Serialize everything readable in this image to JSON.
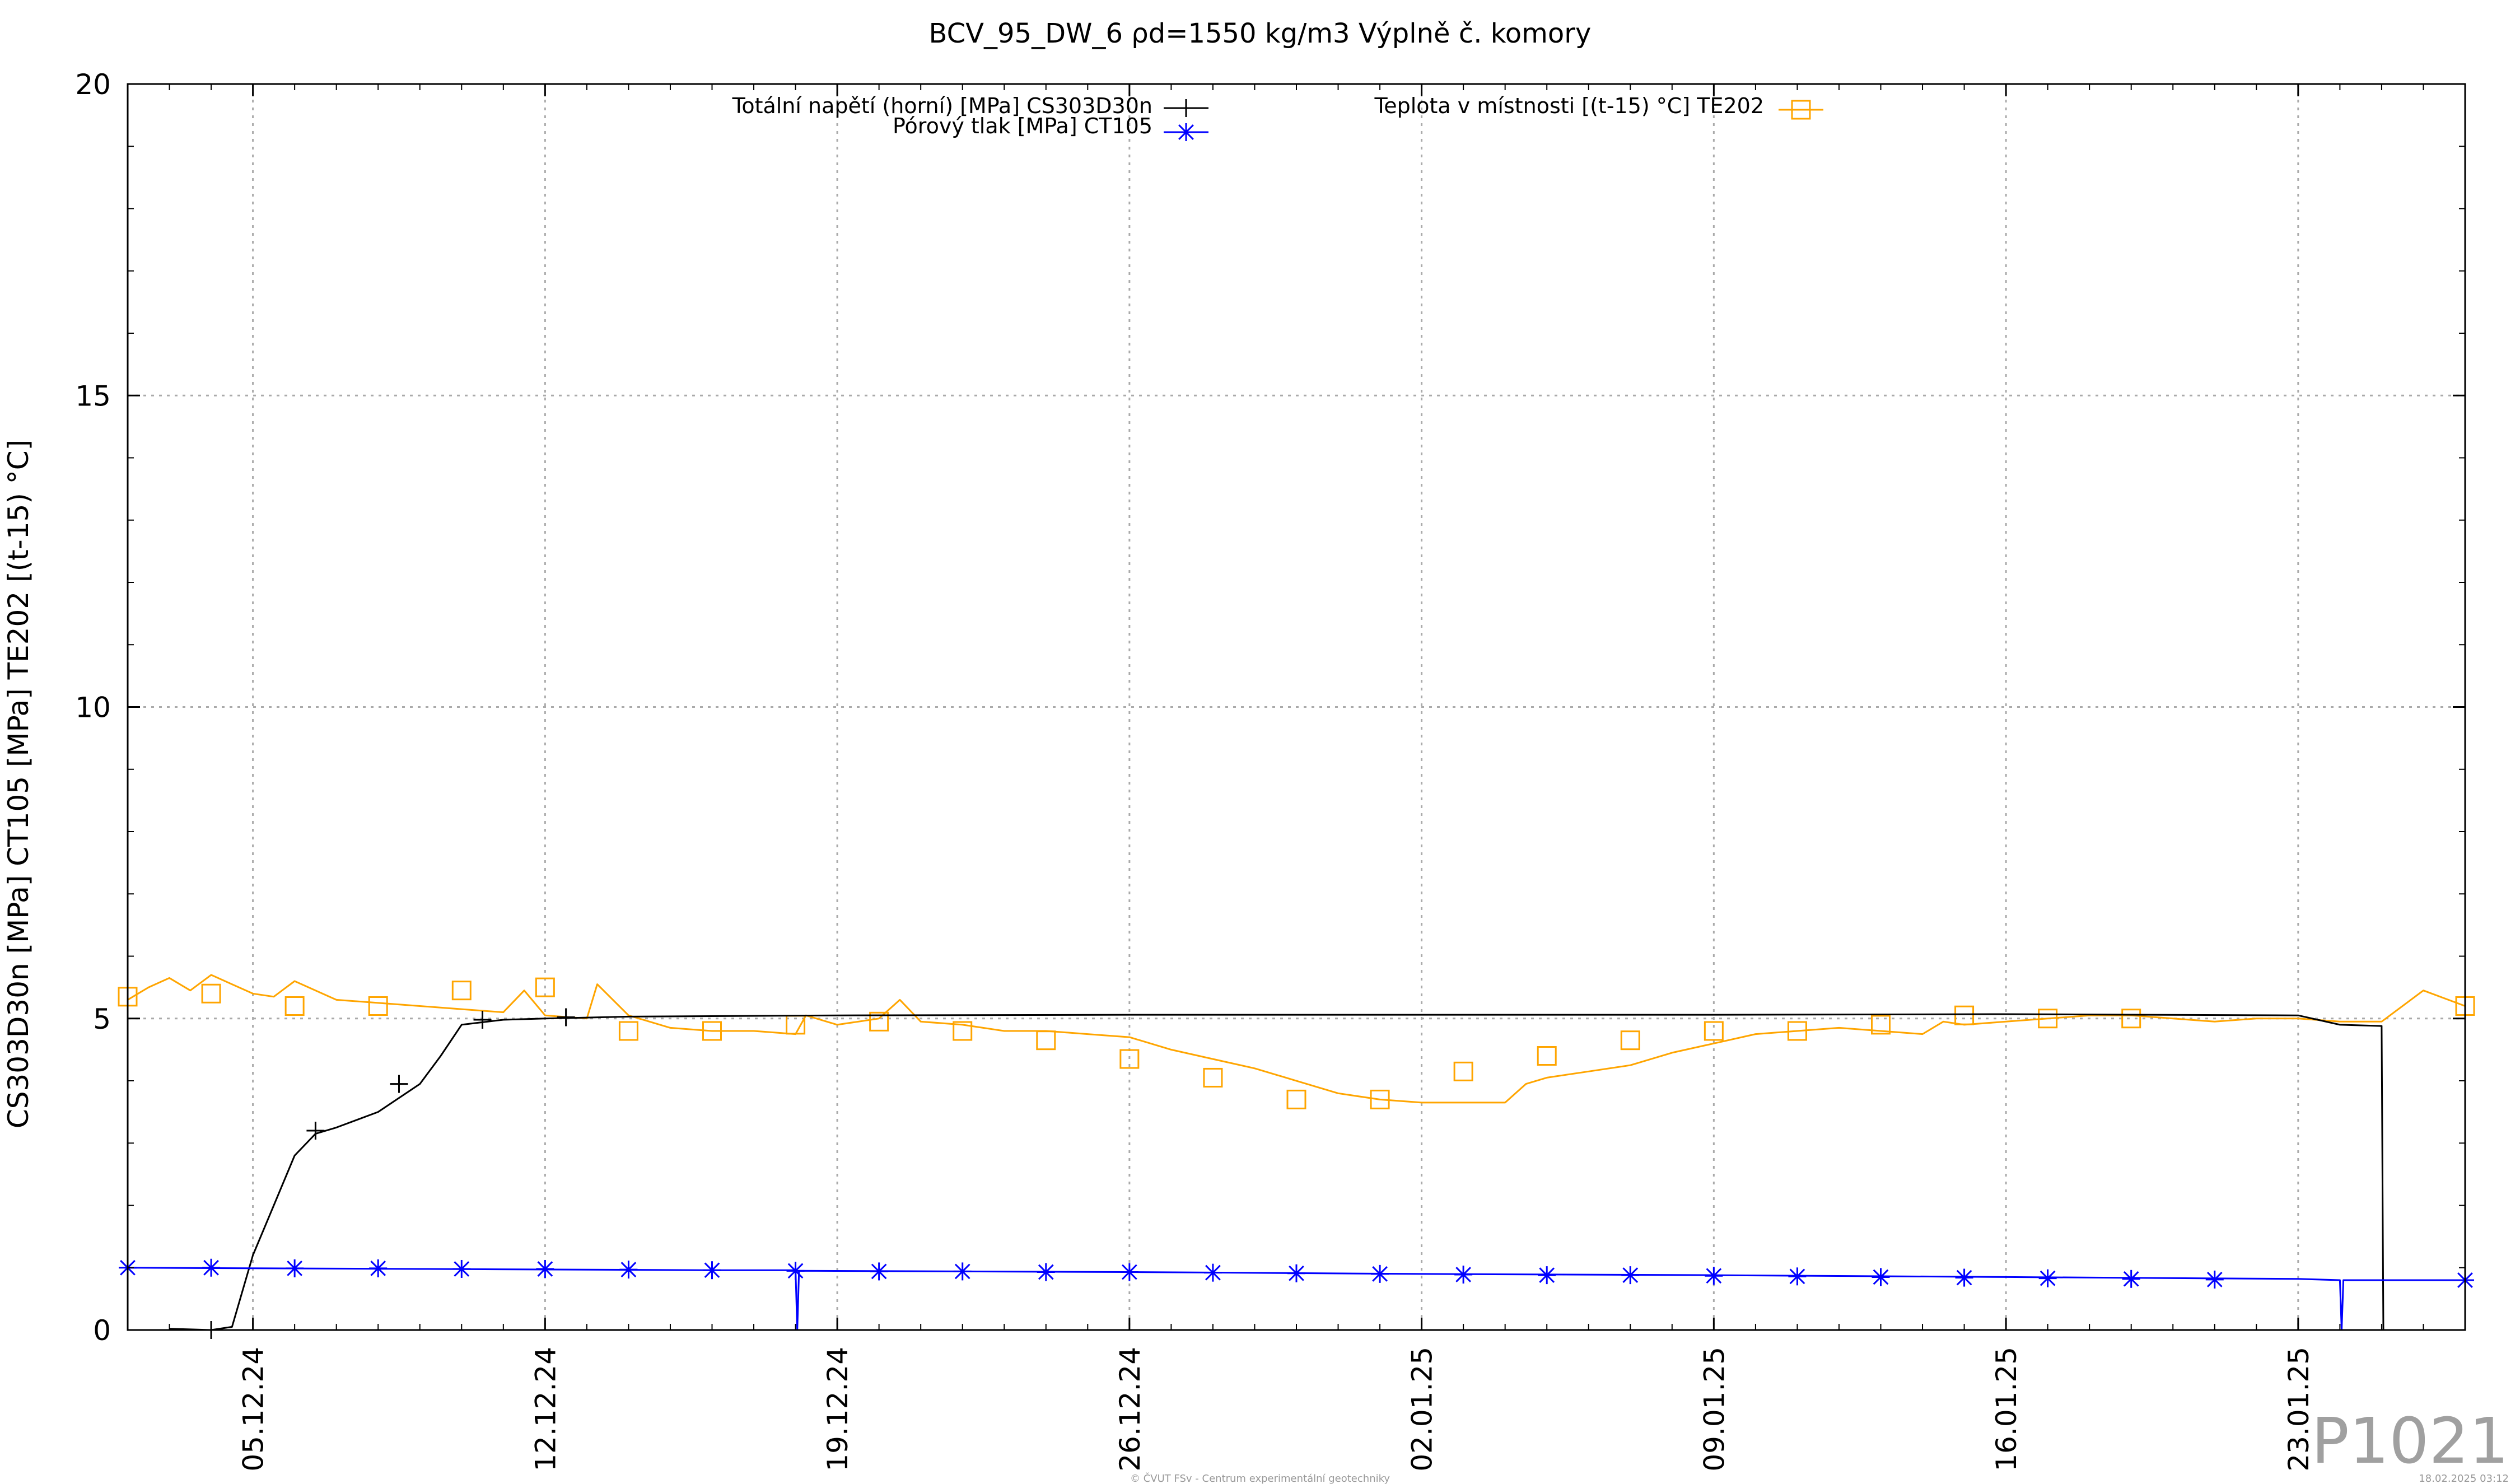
{
  "chart_data": {
    "type": "line",
    "title": "BCV_95_DW_6 ρd=1550 kg/m3 Výplně č. komory",
    "ylabel": "CS303D30n [MPa] CT105 [MPa] TE202 [(t-15) °C]",
    "xlabel": "",
    "ylim": [
      0,
      20
    ],
    "yticks": [
      "0",
      "5",
      "10",
      "15",
      "20"
    ],
    "xlim": [
      "2024-12-02",
      "2025-01-27"
    ],
    "xticks": [
      {
        "date": "2024-12-05",
        "label": "05.12.24"
      },
      {
        "date": "2024-12-12",
        "label": "12.12.24"
      },
      {
        "date": "2024-12-19",
        "label": "19.12.24"
      },
      {
        "date": "2024-12-26",
        "label": "26.12.24"
      },
      {
        "date": "2025-01-02",
        "label": "02.01.25"
      },
      {
        "date": "2025-01-09",
        "label": "09.01.25"
      },
      {
        "date": "2025-01-16",
        "label": "16.01.25"
      },
      {
        "date": "2025-01-23",
        "label": "23.01.25"
      }
    ],
    "grid": true,
    "legend_position": "top",
    "series": [
      {
        "name": "Totální napětí (horní) [MPa] CS303D30n",
        "color": "#000000",
        "marker": "plus",
        "points": [
          [
            "2024-12-03",
            0.02
          ],
          [
            "2024-12-04",
            0.0
          ],
          [
            "2024-12-04T12:00",
            0.05
          ],
          [
            "2024-12-05",
            1.2
          ],
          [
            "2024-12-05T12:00",
            2.0
          ],
          [
            "2024-12-06",
            2.8
          ],
          [
            "2024-12-06T12:00",
            3.15
          ],
          [
            "2024-12-07",
            3.25
          ],
          [
            "2024-12-08",
            3.5
          ],
          [
            "2024-12-09",
            3.95
          ],
          [
            "2024-12-09T12:00",
            4.4
          ],
          [
            "2024-12-10",
            4.9
          ],
          [
            "2024-12-11",
            4.98
          ],
          [
            "2024-12-12",
            5.0
          ],
          [
            "2024-12-14",
            5.03
          ],
          [
            "2024-12-19",
            5.05
          ],
          [
            "2024-12-26",
            5.06
          ],
          [
            "2025-01-02",
            5.06
          ],
          [
            "2025-01-09",
            5.06
          ],
          [
            "2025-01-16",
            5.07
          ],
          [
            "2025-01-23",
            5.05
          ],
          [
            "2025-01-24",
            4.9
          ],
          [
            "2025-01-25",
            4.88
          ],
          [
            "2025-01-25T01:00",
            0.0
          ]
        ],
        "marker_points": [
          [
            "2024-12-04",
            0.0
          ],
          [
            "2024-12-06T12:00",
            3.2
          ],
          [
            "2024-12-08T12:00",
            3.95
          ],
          [
            "2024-12-10T12:00",
            4.98
          ],
          [
            "2024-12-12T12:00",
            5.02
          ]
        ]
      },
      {
        "name": "Pórový tlak [MPa] CT105",
        "color": "#0000ff",
        "marker": "star",
        "points": [
          [
            "2024-12-02",
            1.0
          ],
          [
            "2024-12-09",
            0.98
          ],
          [
            "2024-12-16",
            0.96
          ],
          [
            "2024-12-18",
            0.96
          ],
          [
            "2024-12-18T01:00",
            0.0
          ],
          [
            "2024-12-18T02:00",
            0.95
          ],
          [
            "2024-12-26",
            0.93
          ],
          [
            "2025-01-02",
            0.9
          ],
          [
            "2025-01-09",
            0.88
          ],
          [
            "2025-01-16",
            0.85
          ],
          [
            "2025-01-23",
            0.82
          ],
          [
            "2025-01-24",
            0.8
          ],
          [
            "2025-01-24T01:00",
            0.0
          ],
          [
            "2025-01-24T02:00",
            0.8
          ],
          [
            "2025-01-27",
            0.8
          ]
        ],
        "marker_points": [
          [
            "2024-12-02",
            1.0
          ],
          [
            "2024-12-04",
            1.0
          ],
          [
            "2024-12-06",
            0.99
          ],
          [
            "2024-12-08",
            0.99
          ],
          [
            "2024-12-10",
            0.98
          ],
          [
            "2024-12-12",
            0.98
          ],
          [
            "2024-12-14",
            0.97
          ],
          [
            "2024-12-16",
            0.96
          ],
          [
            "2024-12-18",
            0.95
          ],
          [
            "2024-12-20",
            0.94
          ],
          [
            "2024-12-22",
            0.94
          ],
          [
            "2024-12-24",
            0.93
          ],
          [
            "2024-12-26",
            0.93
          ],
          [
            "2024-12-28",
            0.92
          ],
          [
            "2024-12-30",
            0.91
          ],
          [
            "2025-01-01",
            0.9
          ],
          [
            "2025-01-03",
            0.89
          ],
          [
            "2025-01-05",
            0.88
          ],
          [
            "2025-01-07",
            0.88
          ],
          [
            "2025-01-09",
            0.87
          ],
          [
            "2025-01-11",
            0.86
          ],
          [
            "2025-01-13",
            0.85
          ],
          [
            "2025-01-15",
            0.84
          ],
          [
            "2025-01-17",
            0.83
          ],
          [
            "2025-01-19",
            0.82
          ],
          [
            "2025-01-21",
            0.81
          ],
          [
            "2025-01-27",
            0.8
          ]
        ]
      },
      {
        "name": "Teplota v místnosti [(t-15) °C] TE202",
        "color": "#ffa500",
        "marker": "square",
        "points": [
          [
            "2024-12-02",
            5.3
          ],
          [
            "2024-12-02T12:00",
            5.5
          ],
          [
            "2024-12-03",
            5.65
          ],
          [
            "2024-12-03T12:00",
            5.45
          ],
          [
            "2024-12-04",
            5.7
          ],
          [
            "2024-12-04T12:00",
            5.55
          ],
          [
            "2024-12-05",
            5.4
          ],
          [
            "2024-12-05T12:00",
            5.35
          ],
          [
            "2024-12-06",
            5.6
          ],
          [
            "2024-12-07",
            5.3
          ],
          [
            "2024-12-08",
            5.25
          ],
          [
            "2024-12-09",
            5.2
          ],
          [
            "2024-12-10",
            5.15
          ],
          [
            "2024-12-11",
            5.1
          ],
          [
            "2024-12-11T12:00",
            5.45
          ],
          [
            "2024-12-12",
            5.05
          ],
          [
            "2024-12-13",
            5.0
          ],
          [
            "2024-12-13T06:00",
            5.55
          ],
          [
            "2024-12-14",
            5.05
          ],
          [
            "2024-12-15",
            4.85
          ],
          [
            "2024-12-16",
            4.8
          ],
          [
            "2024-12-17",
            4.8
          ],
          [
            "2024-12-18",
            4.75
          ],
          [
            "2024-12-18T06:00",
            5.05
          ],
          [
            "2024-12-19",
            4.9
          ],
          [
            "2024-12-20",
            5.0
          ],
          [
            "2024-12-20T12:00",
            5.3
          ],
          [
            "2024-12-21",
            4.95
          ],
          [
            "2024-12-22",
            4.9
          ],
          [
            "2024-12-23",
            4.8
          ],
          [
            "2024-12-24",
            4.8
          ],
          [
            "2024-12-25",
            4.75
          ],
          [
            "2024-12-26",
            4.7
          ],
          [
            "2024-12-27",
            4.5
          ],
          [
            "2024-12-28",
            4.35
          ],
          [
            "2024-12-29",
            4.2
          ],
          [
            "2024-12-30",
            4.0
          ],
          [
            "2024-12-31",
            3.8
          ],
          [
            "2025-01-01",
            3.7
          ],
          [
            "2025-01-02",
            3.65
          ],
          [
            "2025-01-03",
            3.65
          ],
          [
            "2025-01-04",
            3.65
          ],
          [
            "2025-01-04T12:00",
            3.95
          ],
          [
            "2025-01-05",
            4.05
          ],
          [
            "2025-01-06",
            4.15
          ],
          [
            "2025-01-07",
            4.25
          ],
          [
            "2025-01-08",
            4.45
          ],
          [
            "2025-01-09",
            4.6
          ],
          [
            "2025-01-10",
            4.75
          ],
          [
            "2025-01-11",
            4.8
          ],
          [
            "2025-01-12",
            4.85
          ],
          [
            "2025-01-13",
            4.8
          ],
          [
            "2025-01-14",
            4.75
          ],
          [
            "2025-01-14T12:00",
            4.95
          ],
          [
            "2025-01-15",
            4.9
          ],
          [
            "2025-01-16",
            4.95
          ],
          [
            "2025-01-17",
            5.0
          ],
          [
            "2025-01-18",
            5.05
          ],
          [
            "2025-01-19",
            5.05
          ],
          [
            "2025-01-20",
            5.0
          ],
          [
            "2025-01-21",
            4.95
          ],
          [
            "2025-01-22",
            5.0
          ],
          [
            "2025-01-23",
            5.0
          ],
          [
            "2025-01-24",
            4.95
          ],
          [
            "2025-01-25",
            4.95
          ],
          [
            "2025-01-26",
            5.45
          ],
          [
            "2025-01-27",
            5.2
          ]
        ],
        "marker_points": [
          [
            "2024-12-02",
            5.35
          ],
          [
            "2024-12-04",
            5.4
          ],
          [
            "2024-12-06",
            5.2
          ],
          [
            "2024-12-08",
            5.2
          ],
          [
            "2024-12-10",
            5.45
          ],
          [
            "2024-12-12",
            5.5
          ],
          [
            "2024-12-14",
            4.8
          ],
          [
            "2024-12-16",
            4.8
          ],
          [
            "2024-12-18",
            4.9
          ],
          [
            "2024-12-20",
            4.95
          ],
          [
            "2024-12-22",
            4.8
          ],
          [
            "2024-12-24",
            4.65
          ],
          [
            "2024-12-26",
            4.35
          ],
          [
            "2024-12-28",
            4.05
          ],
          [
            "2024-12-30",
            3.7
          ],
          [
            "2025-01-01",
            3.7
          ],
          [
            "2025-01-03",
            4.15
          ],
          [
            "2025-01-05",
            4.4
          ],
          [
            "2025-01-07",
            4.65
          ],
          [
            "2025-01-09",
            4.8
          ],
          [
            "2025-01-11",
            4.8
          ],
          [
            "2025-01-13",
            4.9
          ],
          [
            "2025-01-15",
            5.05
          ],
          [
            "2025-01-17",
            5.0
          ],
          [
            "2025-01-19",
            5.0
          ],
          [
            "2025-01-27",
            5.2
          ]
        ]
      }
    ]
  },
  "footer": {
    "copyright": "© ČVUT FSv - Centrum experimentální geotechniky",
    "timestamp": "18.02.2025 03:12",
    "watermark": "P1021"
  }
}
